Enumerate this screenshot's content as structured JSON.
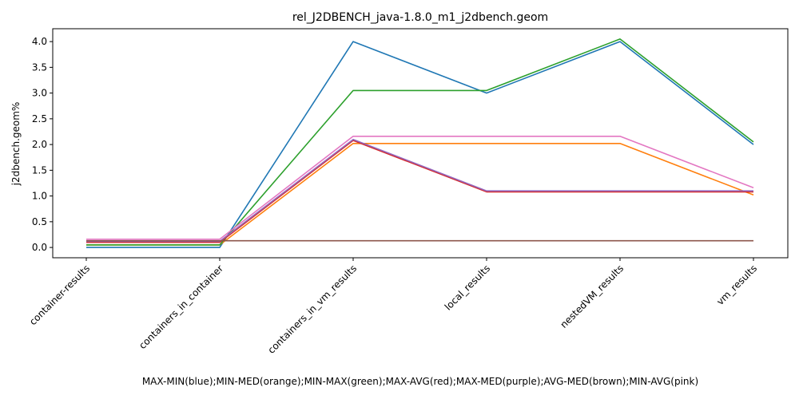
{
  "chart_data": {
    "type": "line",
    "title": "rel_J2DBENCH_java-1.8.0_m1_j2dbench.geom",
    "xlabel": "MAX-MIN(blue);MIN-MED(orange);MIN-MAX(green);MAX-AVG(red);MAX-MED(purple);AVG-MED(brown);MIN-AVG(pink)",
    "ylabel": "j2dbench.geom%",
    "categories": [
      "container-results",
      "containers_in_container",
      "containers_in_vm_results",
      "local_results",
      "nestedVM_results",
      "vm_results"
    ],
    "yticks": [
      "0.0",
      "0.5",
      "1.0",
      "1.5",
      "2.0",
      "2.5",
      "3.0",
      "3.5",
      "4.0"
    ],
    "ylim": [
      -0.2,
      4.25
    ],
    "grid": false,
    "legend": "none",
    "series": [
      {
        "color": "#1f77b4",
        "values": [
          0.0,
          0.0,
          4.0,
          3.0,
          4.0,
          2.0
        ]
      },
      {
        "color": "#ff7f0e",
        "values": [
          0.05,
          0.05,
          2.02,
          2.02,
          2.02,
          1.02
        ]
      },
      {
        "color": "#2ca02c",
        "values": [
          0.05,
          0.05,
          3.05,
          3.05,
          4.05,
          2.05
        ]
      },
      {
        "color": "#d62728",
        "values": [
          0.1,
          0.1,
          2.08,
          1.08,
          1.08,
          1.08
        ]
      },
      {
        "color": "#9467bd",
        "values": [
          0.12,
          0.12,
          2.1,
          1.1,
          1.1,
          1.1
        ]
      },
      {
        "color": "#8c564b",
        "values": [
          0.13,
          0.13,
          0.13,
          0.13,
          0.13,
          0.13
        ]
      },
      {
        "color": "#e377c2",
        "values": [
          0.16,
          0.16,
          2.16,
          2.16,
          2.16,
          1.16
        ]
      }
    ]
  }
}
